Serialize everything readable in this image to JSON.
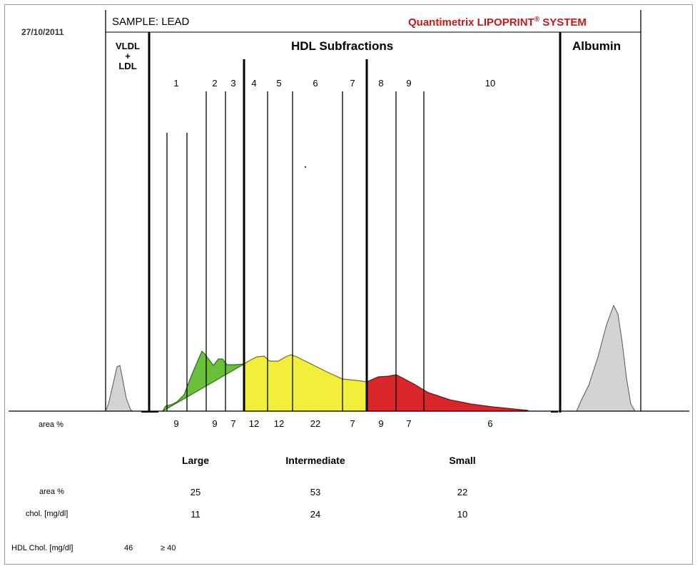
{
  "date": "27/10/2011",
  "sample": "SAMPLE: LEAD",
  "brand": {
    "main": "Quantimetrix LIPOPRINT",
    "mark": "®",
    "tail": " SYSTEM"
  },
  "vldl_label": {
    "line1": "VLDL",
    "line2": "+",
    "line3": "LDL"
  },
  "hdl_title": "HDL Subfractions",
  "albumin_title": "Albumin",
  "colors": {
    "large": "#6abf3b",
    "intermediate": "#f2ef3a",
    "small": "#d9262b",
    "gray": "#d3d3d3"
  },
  "chart_data": {
    "type": "area",
    "title": "HDL Subfractions",
    "fractions": [
      "1",
      "2",
      "3",
      "4",
      "5",
      "6",
      "7",
      "8",
      "9",
      "10"
    ],
    "area_label": "area %",
    "area_percent": [
      "9",
      "9",
      "7",
      "12",
      "12",
      "22",
      "7",
      "9",
      "7",
      "6"
    ],
    "groups": [
      {
        "name": "Large",
        "fractions": [
          "1",
          "2",
          "3"
        ],
        "area_percent": "25",
        "chol_mg_dl": "11"
      },
      {
        "name": "Intermediate",
        "fractions": [
          "4",
          "5",
          "6",
          "7"
        ],
        "area_percent": "53",
        "chol_mg_dl": "24"
      },
      {
        "name": "Small",
        "fractions": [
          "8",
          "9",
          "10"
        ],
        "area_percent": "22",
        "chol_mg_dl": "10"
      }
    ]
  },
  "summary": {
    "area_label": "area %",
    "chol_label": "chol. [mg/dl]",
    "hdl_chol_label": "HDL Chol. [mg/dl]",
    "hdl_chol_value": "46",
    "hdl_chol_ref": "≥ 40"
  }
}
